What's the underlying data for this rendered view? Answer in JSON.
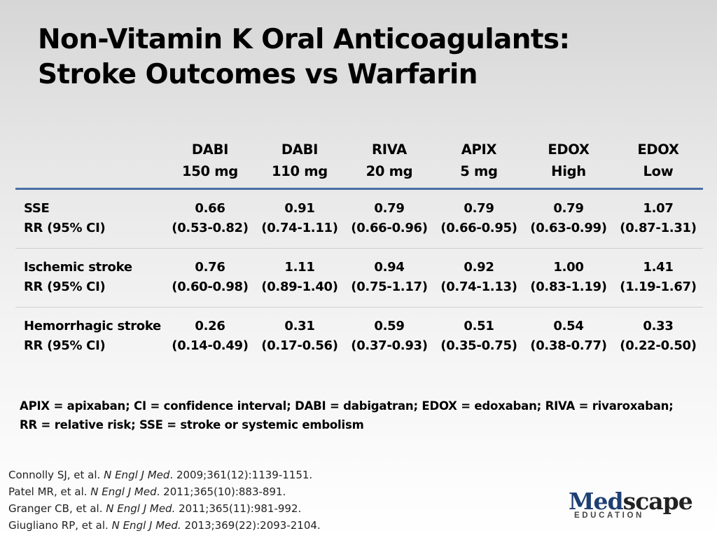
{
  "slide": {
    "title_line1": "Non-Vitamin K Oral Anticoagulants:",
    "title_line2": "Stroke Outcomes vs Warfarin"
  },
  "table": {
    "columns": [
      {
        "line1": "DABI",
        "line2": "150 mg"
      },
      {
        "line1": "DABI",
        "line2": "110 mg"
      },
      {
        "line1": "RIVA",
        "line2": "20 mg"
      },
      {
        "line1": "APIX",
        "line2": "5 mg"
      },
      {
        "line1": "EDOX",
        "line2": "High"
      },
      {
        "line1": "EDOX",
        "line2": "Low"
      }
    ],
    "rows": [
      {
        "label1": "SSE",
        "label2": "RR (95% CI)",
        "cells": [
          {
            "rr": "0.66",
            "ci": "(0.53-0.82)"
          },
          {
            "rr": "0.91",
            "ci": "(0.74-1.11)"
          },
          {
            "rr": "0.79",
            "ci": "(0.66-0.96)"
          },
          {
            "rr": "0.79",
            "ci": "(0.66-0.95)"
          },
          {
            "rr": "0.79",
            "ci": "(0.63-0.99)"
          },
          {
            "rr": "1.07",
            "ci": "(0.87-1.31)"
          }
        ]
      },
      {
        "label1": "Ischemic stroke",
        "label2": "RR (95% CI)",
        "cells": [
          {
            "rr": "0.76",
            "ci": "(0.60-0.98)"
          },
          {
            "rr": "1.11",
            "ci": "(0.89-1.40)"
          },
          {
            "rr": "0.94",
            "ci": "(0.75-1.17)"
          },
          {
            "rr": "0.92",
            "ci": "(0.74-1.13)"
          },
          {
            "rr": "1.00",
            "ci": "(0.83-1.19)"
          },
          {
            "rr": "1.41",
            "ci": "(1.19-1.67)"
          }
        ]
      },
      {
        "label1": "Hemorrhagic stroke",
        "label2": "RR (95% CI)",
        "cells": [
          {
            "rr": "0.26",
            "ci": "(0.14-0.49)"
          },
          {
            "rr": "0.31",
            "ci": "(0.17-0.56)"
          },
          {
            "rr": "0.59",
            "ci": "(0.37-0.93)"
          },
          {
            "rr": "0.51",
            "ci": "(0.35-0.75)"
          },
          {
            "rr": "0.54",
            "ci": "(0.38-0.77)"
          },
          {
            "rr": "0.33",
            "ci": "(0.22-0.50)"
          }
        ]
      }
    ]
  },
  "abbreviations": {
    "line1": "APIX = apixaban; CI = confidence interval; DABI = dabigatran; EDOX = edoxaban; RIVA = rivaroxaban;",
    "line2": "RR = relative risk; SSE = stroke or systemic embolism"
  },
  "references": [
    {
      "authors": "Connolly SJ, et al.",
      "journal": "N Engl J Med",
      "sep": ".",
      "citation": " 2009;361(12):1139-1151."
    },
    {
      "authors": "Patel MR, et al.",
      "journal": "N Engl J Med",
      "sep": ".",
      "citation": " 2011;365(10):883-891."
    },
    {
      "authors": "Granger CB, et al.",
      "journal": "N Engl J Med.",
      "sep": "",
      "citation": " 2011;365(11):981-992."
    },
    {
      "authors": "Giugliano RP, et al.",
      "journal": "N Engl J Med.",
      "sep": "",
      "citation": " 2013;369(22):2093-2104."
    }
  ],
  "logo": {
    "word_part1": "Med",
    "word_part2": "scape",
    "subtitle": "EDUCATION",
    "primary_color": "#1e3f73"
  },
  "colors": {
    "header_rule": "#4a6fa5",
    "row_divider": "#cfcfcf"
  }
}
